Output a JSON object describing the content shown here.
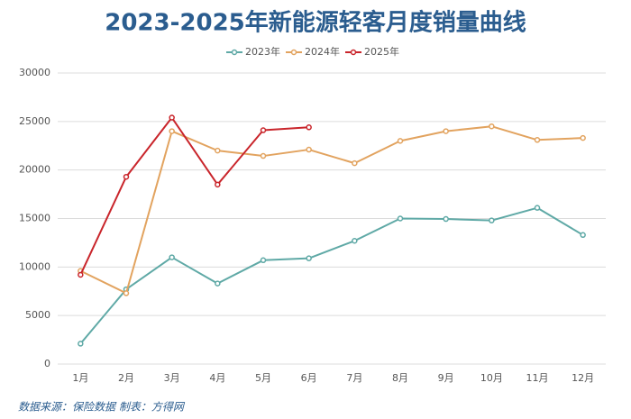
{
  "chart_data": {
    "type": "line",
    "title": "2023-2025年新能源轻客月度销量曲线",
    "source": "数据来源：保险数据 制表：方得网",
    "categories": [
      "1月",
      "2月",
      "3月",
      "4月",
      "5月",
      "6月",
      "7月",
      "8月",
      "9月",
      "10月",
      "11月",
      "12月"
    ],
    "series": [
      {
        "name": "2023年",
        "color": "#5fa9a6",
        "values": [
          2100,
          7700,
          11000,
          8300,
          10700,
          10900,
          12700,
          15000,
          14950,
          14800,
          16100,
          13300
        ]
      },
      {
        "name": "2024年",
        "color": "#e2a35f",
        "values": [
          9600,
          7300,
          24000,
          22000,
          21450,
          22100,
          20700,
          23000,
          24000,
          24500,
          23100,
          23300
        ]
      },
      {
        "name": "2025年",
        "color": "#c9252b",
        "values": [
          9200,
          19300,
          25400,
          18500,
          24100,
          24400,
          null,
          null,
          null,
          null,
          null,
          null
        ]
      }
    ],
    "ylim": [
      0,
      30000
    ],
    "yticks": [
      0,
      5000,
      10000,
      15000,
      20000,
      25000,
      30000
    ],
    "grid": true,
    "legend": "top"
  }
}
